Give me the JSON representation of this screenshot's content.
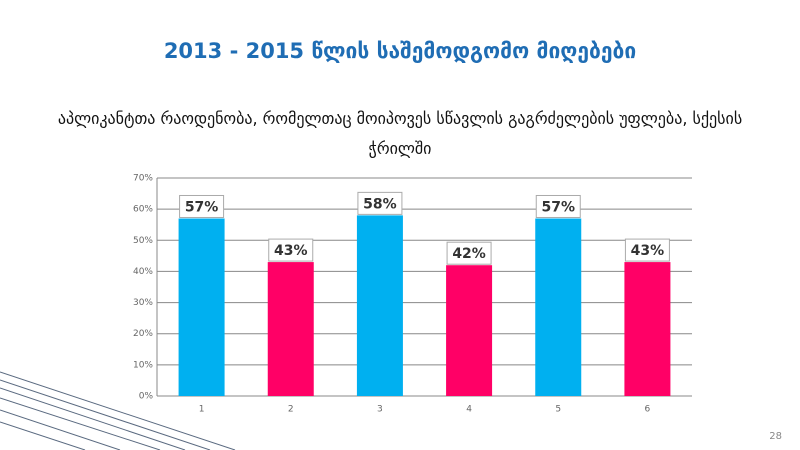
{
  "chart_data": {
    "type": "bar",
    "title": "2013 - 2015 წლის საშემოდგომო მიღებები",
    "subtitle": "აპლიკანტთა რაოდენობა, რომელთაც მოიპოვეს სწავლის გაგრძელების უფლება, სქესის ჭრილში",
    "categories": [
      "1",
      "2",
      "3",
      "4",
      "5",
      "6"
    ],
    "values": [
      57,
      43,
      58,
      42,
      57,
      43
    ],
    "value_labels": [
      "57%",
      "43%",
      "58%",
      "42%",
      "57%",
      "43%"
    ],
    "colors": [
      "#00b0f0",
      "#ff0066",
      "#00b0f0",
      "#ff0066",
      "#00b0f0",
      "#ff0066"
    ],
    "ylim": [
      0,
      70
    ],
    "yticks": [
      {
        "value": 0,
        "label": "0%"
      },
      {
        "value": 10,
        "label": "10%"
      },
      {
        "value": 20,
        "label": "20%"
      },
      {
        "value": 30,
        "label": "30%"
      },
      {
        "value": 40,
        "label": "40%"
      },
      {
        "value": 50,
        "label": "50%"
      },
      {
        "value": 60,
        "label": "60%"
      },
      {
        "value": 70,
        "label": "70%"
      }
    ],
    "grid": true
  },
  "page_number": 28
}
